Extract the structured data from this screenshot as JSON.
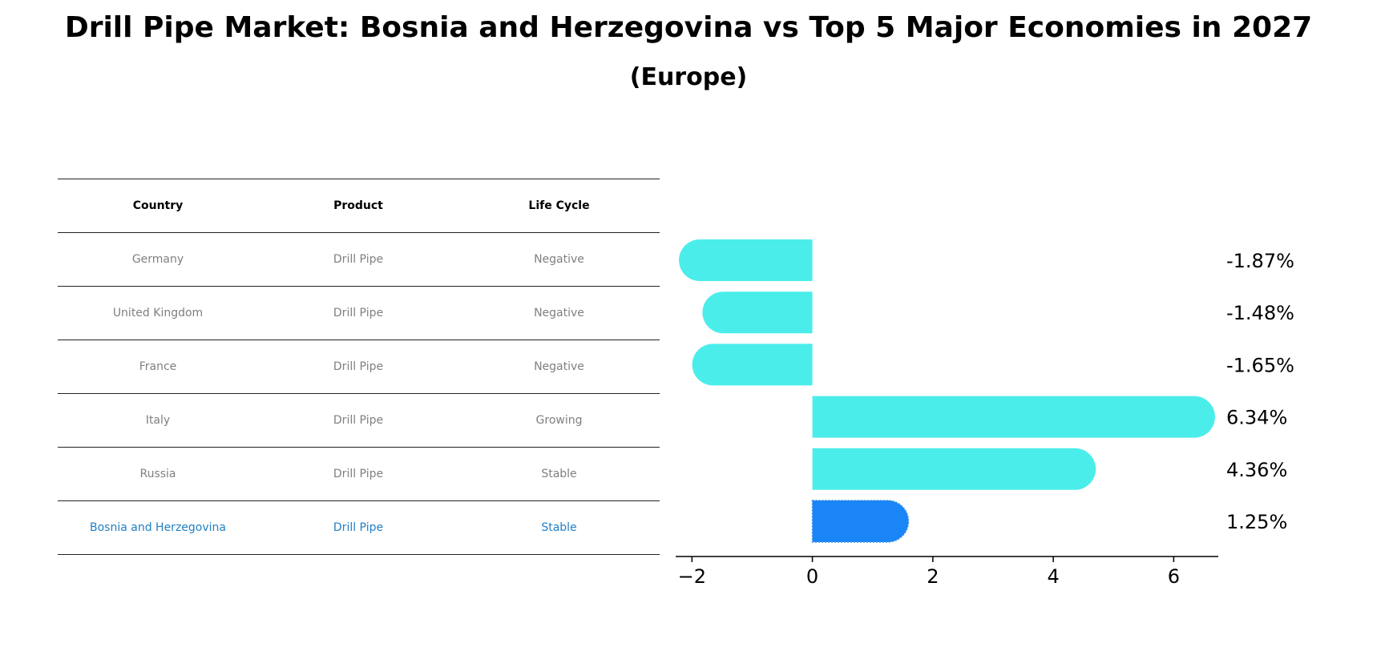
{
  "title": "Drill Pipe Market: Bosnia and Herzegovina vs Top 5 Major Economies in 2027",
  "subtitle": "(Europe)",
  "table": {
    "headers": [
      "Country",
      "Product",
      "Life Cycle"
    ],
    "rows": [
      {
        "country": "Germany",
        "product": "Drill Pipe",
        "life_cycle": "Negative",
        "highlight": false
      },
      {
        "country": "United Kingdom",
        "product": "Drill Pipe",
        "life_cycle": "Negative",
        "highlight": false
      },
      {
        "country": "France",
        "product": "Drill Pipe",
        "life_cycle": "Negative",
        "highlight": false
      },
      {
        "country": "Italy",
        "product": "Drill Pipe",
        "life_cycle": "Growing",
        "highlight": false
      },
      {
        "country": "Russia",
        "product": "Drill Pipe",
        "life_cycle": "Stable",
        "highlight": false
      },
      {
        "country": "Bosnia and Herzegovina",
        "product": "Drill Pipe",
        "life_cycle": "Stable",
        "highlight": true
      }
    ]
  },
  "chart_data": {
    "type": "bar",
    "orientation": "horizontal",
    "categories": [
      "Germany",
      "United Kingdom",
      "France",
      "Italy",
      "Russia",
      "Bosnia and Herzegovina"
    ],
    "values": [
      -1.87,
      -1.48,
      -1.65,
      6.34,
      4.36,
      1.25
    ],
    "value_labels": [
      "-1.87%",
      "-1.48%",
      "-1.65%",
      "6.34%",
      "4.36%",
      "1.25%"
    ],
    "highlight_index": 5,
    "xlim": [
      -2.27,
      6.74
    ],
    "xticks": [
      -2,
      0,
      2,
      4,
      6
    ],
    "xtick_labels": [
      "−2",
      "0",
      "2",
      "4",
      "6"
    ],
    "colors": {
      "bar": "#4bedea",
      "highlight": "#1985f6",
      "highlight_text": "#1f7fc4",
      "muted_text": "#7f7f7f"
    }
  }
}
